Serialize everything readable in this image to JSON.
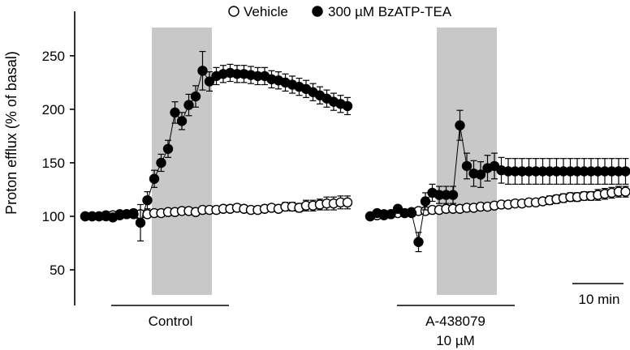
{
  "chart_data": {
    "type": "scatter",
    "ylabel": "Proton efflux (% of basal)",
    "ylim": [
      50,
      260
    ],
    "yticks": [
      50,
      100,
      150,
      200,
      250
    ],
    "x_unit": "min",
    "grid": false,
    "legend_position": "top-center",
    "colors": {
      "vehicle_fill": "#ffffff",
      "bzatp_fill": "#000000",
      "stimulus_band": "#c8c8c8"
    },
    "panels": [
      {
        "label": "Control",
        "sublabel": "",
        "stimulus_window": [
          10,
          18
        ],
        "series": [
          {
            "name": "Vehicle",
            "x": [
              0,
              1,
              2,
              3,
              4,
              5,
              6,
              7,
              8,
              9,
              10,
              11,
              12,
              13,
              14,
              15,
              16,
              17,
              18,
              19,
              20,
              21,
              22,
              23,
              24,
              25,
              26,
              27,
              28,
              29,
              30,
              31,
              32,
              33,
              34,
              35,
              36,
              37,
              38
            ],
            "y": [
              100,
              100,
              100,
              101,
              101,
              101,
              102,
              103,
              102,
              102,
              103,
              103,
              104,
              104,
              105,
              105,
              104,
              106,
              106,
              106,
              107,
              107,
              108,
              107,
              106,
              106,
              107,
              108,
              107,
              109,
              109,
              108,
              110,
              110,
              111,
              112,
              112,
              113,
              113
            ],
            "err": [
              1,
              1,
              1,
              1,
              1,
              1,
              1,
              1,
              1,
              1,
              1,
              1,
              1,
              1,
              1,
              1,
              1,
              2,
              2,
              2,
              2,
              2,
              2,
              2,
              2,
              3,
              3,
              3,
              3,
              4,
              4,
              4,
              5,
              5,
              5,
              6,
              6,
              6,
              6
            ]
          },
          {
            "name": "300 µM BzATP-TEA",
            "x": [
              0,
              1,
              2,
              3,
              4,
              5,
              6,
              7,
              8,
              9,
              10,
              11,
              12,
              13,
              14,
              15,
              16,
              17,
              18,
              19,
              20,
              21,
              22,
              23,
              24,
              25,
              26,
              27,
              28,
              29,
              30,
              31,
              32,
              33,
              34,
              35,
              36,
              37,
              38
            ],
            "y": [
              100,
              100,
              100,
              100,
              99,
              102,
              102,
              102,
              94,
              115,
              135,
              150,
              163,
              197,
              189,
              204,
              212,
              236,
              226,
              231,
              233,
              234,
              233,
              233,
              232,
              231,
              231,
              228,
              227,
              225,
              223,
              221,
              219,
              216,
              213,
              210,
              207,
              205,
              203
            ],
            "err": [
              1,
              1,
              1,
              1,
              2,
              2,
              2,
              3,
              17,
              8,
              8,
              8,
              8,
              10,
              8,
              10,
              10,
              18,
              9,
              8,
              8,
              8,
              8,
              8,
              8,
              8,
              8,
              8,
              8,
              8,
              8,
              8,
              8,
              8,
              8,
              8,
              8,
              8,
              8
            ]
          }
        ]
      },
      {
        "label": "A-438079",
        "sublabel": "10 µM",
        "stimulus_window": [
          10,
          18
        ],
        "series": [
          {
            "name": "Vehicle",
            "x": [
              0,
              1,
              2,
              3,
              4,
              5,
              6,
              7,
              8,
              9,
              10,
              11,
              12,
              13,
              14,
              15,
              16,
              17,
              18,
              19,
              20,
              21,
              22,
              23,
              24,
              25,
              26,
              27,
              28,
              29,
              30,
              31,
              32,
              33,
              34,
              35,
              36,
              37
            ],
            "y": [
              100,
              101,
              102,
              102,
              103,
              103,
              104,
              105,
              105,
              106,
              106,
              107,
              107,
              107,
              108,
              108,
              109,
              109,
              110,
              111,
              111,
              112,
              112,
              113,
              113,
              114,
              115,
              116,
              117,
              118,
              118,
              119,
              119,
              120,
              121,
              122,
              123,
              123
            ],
            "err": [
              1,
              1,
              1,
              1,
              1,
              1,
              1,
              1,
              1,
              1,
              1,
              1,
              1,
              2,
              2,
              2,
              2,
              2,
              2,
              3,
              3,
              3,
              3,
              3,
              3,
              3,
              4,
              4,
              4,
              4,
              4,
              4,
              4,
              5,
              5,
              5,
              5,
              5
            ]
          },
          {
            "name": "300 µM BzATP-TEA",
            "x": [
              0,
              1,
              2,
              3,
              4,
              5,
              6,
              7,
              8,
              9,
              10,
              11,
              12,
              13,
              14,
              15,
              16,
              17,
              18,
              19,
              20,
              21,
              22,
              23,
              24,
              25,
              26,
              27,
              28,
              29,
              30,
              31,
              32,
              33,
              34,
              35,
              36,
              37
            ],
            "y": [
              100,
              103,
              101,
              102,
              107,
              103,
              103,
              76,
              114,
              122,
              120,
              120,
              120,
              185,
              147,
              140,
              139,
              145,
              147,
              143,
              142,
              142,
              142,
              142,
              142,
              142,
              142,
              142,
              142,
              142,
              142,
              142,
              142,
              142,
              142,
              142,
              142,
              142
            ],
            "err": [
              1,
              1,
              1,
              1,
              1,
              2,
              2,
              9,
              8,
              8,
              8,
              8,
              8,
              14,
              12,
              12,
              12,
              12,
              12,
              12,
              12,
              12,
              12,
              12,
              12,
              12,
              12,
              12,
              12,
              12,
              12,
              12,
              12,
              12,
              12,
              12,
              12,
              12
            ]
          }
        ]
      }
    ],
    "scale_bar": {
      "value": 10,
      "label": "10 min"
    }
  }
}
